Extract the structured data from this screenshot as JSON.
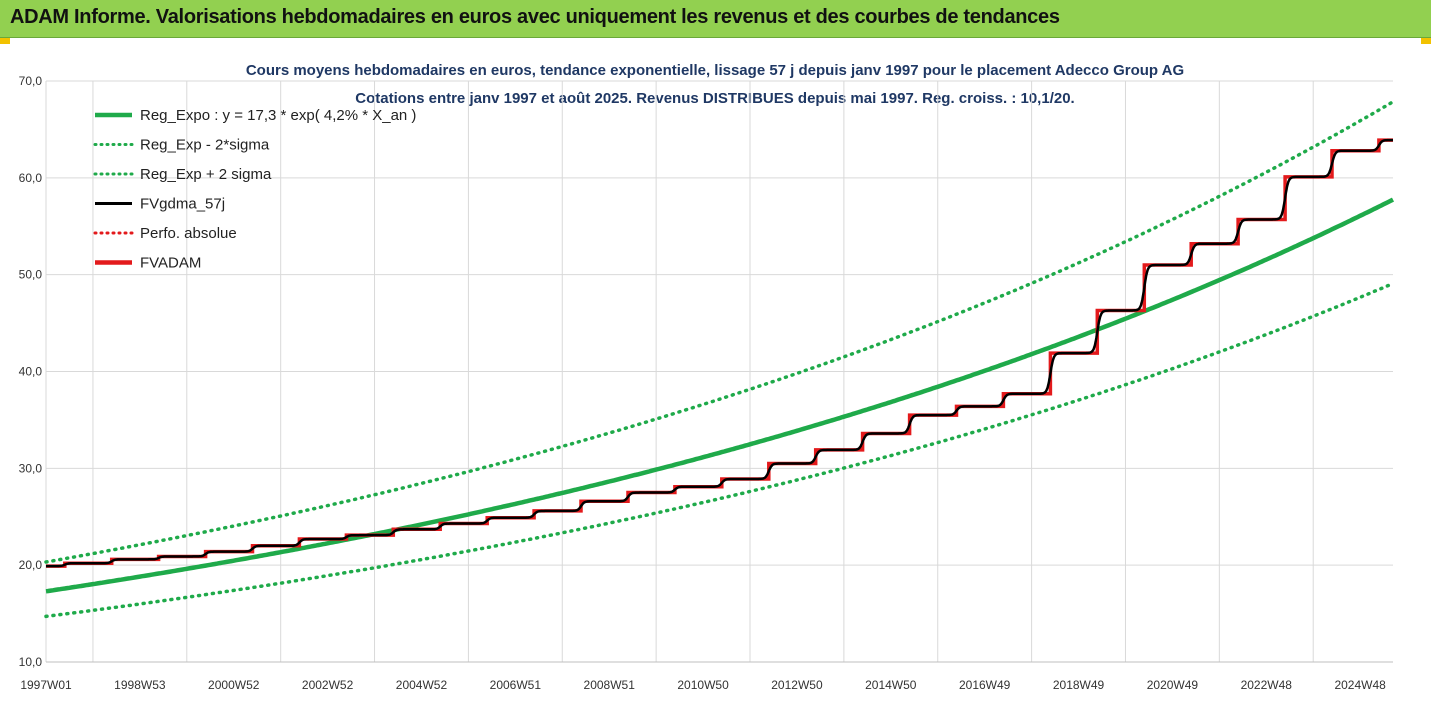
{
  "header": {
    "title": "ADAM Informe. Valorisations hebdomadaires en euros avec uniquement les revenus et des courbes de tendances"
  },
  "chart_data": {
    "type": "line",
    "title_line1": "Cours moyens hebdomadaires en euros, tendance exponentielle, lissage 57 j depuis janv 1997 pour le placement Adecco Group AG",
    "title_line2": "Cotations entre janv 1997 et août 2025. Revenus DISTRIBUES depuis mai 1997. Reg. croiss. : 10,1/20.",
    "ylim": [
      10,
      70
    ],
    "xlim": [
      1997.0,
      2025.7
    ],
    "y_ticks": [
      "10,0",
      "20,0",
      "30,0",
      "40,0",
      "50,0",
      "60,0",
      "70,0"
    ],
    "y_tick_values": [
      10,
      20,
      30,
      40,
      50,
      60,
      70
    ],
    "x_ticks": [
      "1997W01",
      "1998W53",
      "2000W52",
      "2002W52",
      "2004W52",
      "2006W51",
      "2008W51",
      "2010W50",
      "2012W50",
      "2014W50",
      "2016W49",
      "2018W49",
      "2020W49",
      "2022W48",
      "2024W48"
    ],
    "x_tick_values": [
      1997.0,
      1999.0,
      2001.0,
      2003.0,
      2005.0,
      2007.0,
      2009.0,
      2011.0,
      2013.0,
      2015.0,
      2017.0,
      2019.0,
      2021.0,
      2023.0,
      2025.0
    ],
    "grid": true,
    "legend_position": "top-left",
    "regression": {
      "a": 17.3,
      "b": 0.042,
      "lower_factor": 0.85,
      "upper_factor": 1.175
    },
    "series": [
      {
        "name": "Reg_Expo : y = 17,3 * exp( 4,2% *  X_an )",
        "key": "reg",
        "color": "#1faa4a",
        "style": "solid"
      },
      {
        "name": "Reg_Exp - 2*sigma",
        "key": "lower",
        "color": "#1faa4a",
        "style": "dotted"
      },
      {
        "name": "Reg_Exp + 2 sigma",
        "key": "upper",
        "color": "#1faa4a",
        "style": "dotted"
      },
      {
        "name": "FVgdma_57j",
        "key": "smooth",
        "color": "#000000",
        "style": "solid"
      },
      {
        "name": "Perfo. absolue",
        "key": "perfo",
        "color": "#e31a1c",
        "style": "dotted"
      },
      {
        "name": "FVADAM",
        "key": "fvadam",
        "color": "#e31a1c",
        "style": "solid"
      }
    ],
    "fvadam_steps": {
      "x": [
        1997.0,
        1997.4,
        1998.4,
        1999.4,
        2000.4,
        2001.4,
        2002.4,
        2003.4,
        2004.4,
        2005.4,
        2006.4,
        2007.4,
        2008.4,
        2009.4,
        2010.4,
        2011.4,
        2012.4,
        2013.4,
        2014.4,
        2015.4,
        2016.4,
        2017.4,
        2018.4,
        2019.4,
        2020.4,
        2021.4,
        2022.4,
        2023.4,
        2024.4,
        2025.4
      ],
      "y": [
        19.9,
        20.2,
        20.6,
        20.9,
        21.4,
        22.0,
        22.7,
        23.1,
        23.7,
        24.3,
        24.9,
        25.6,
        26.6,
        27.5,
        28.1,
        28.9,
        30.5,
        31.9,
        33.6,
        35.5,
        36.4,
        37.7,
        41.9,
        46.3,
        51.0,
        53.2,
        55.7,
        60.1,
        62.8,
        63.9
      ]
    }
  }
}
